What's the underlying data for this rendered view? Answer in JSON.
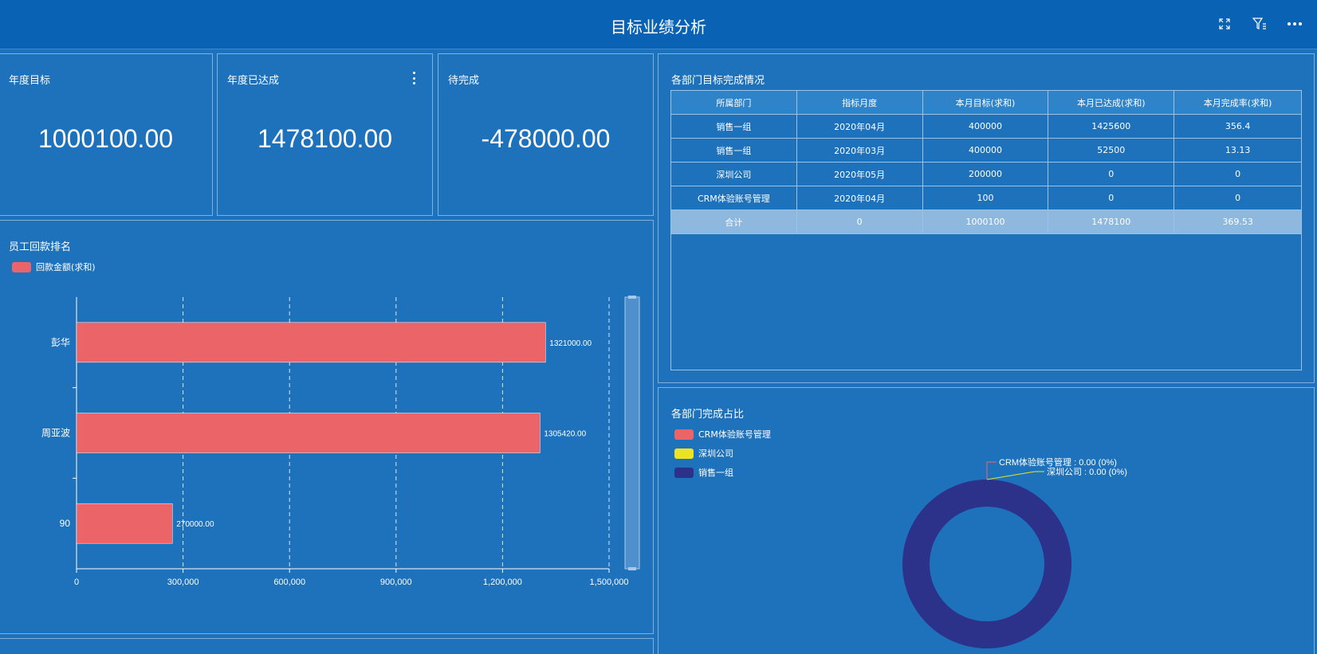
{
  "header": {
    "title": "目标业绩分析"
  },
  "icons": {
    "fullscreen": "fullscreen-icon",
    "filter": "filter-icon",
    "more": "more-horizontal-icon"
  },
  "kpis": [
    {
      "label": "年度目标",
      "value": "1000100.00"
    },
    {
      "label": "年度已达成",
      "value": "1478100.00"
    },
    {
      "label": "待完成",
      "value": "-478000.00"
    }
  ],
  "ranking": {
    "title": "员工回款排名"
  },
  "dept_table": {
    "title": "各部门目标完成情况",
    "columns": [
      "所属部门",
      "指标月度",
      "本月目标(求和)",
      "本月已达成(求和)",
      "本月完成率(求和)"
    ],
    "rows": [
      [
        "销售一组",
        "2020年04月",
        "400000",
        "1425600",
        "356.4"
      ],
      [
        "销售一组",
        "2020年03月",
        "400000",
        "52500",
        "13.13"
      ],
      [
        "深圳公司",
        "2020年05月",
        "200000",
        "0",
        "0"
      ],
      [
        "CRM体验账号管理",
        "2020年04月",
        "100",
        "0",
        "0"
      ]
    ],
    "total": [
      "合计",
      "0",
      "1000100",
      "1478100",
      "369.53"
    ]
  },
  "share": {
    "title": "各部门完成占比",
    "callouts": [
      "CRM体验账号管理 : 0.00 (0%)",
      "深圳公司 : 0.00 (0%)"
    ]
  },
  "colors": {
    "background": "#1e72bb",
    "header": "#0962b4",
    "bar": "#eb6568",
    "crm": "#eb6568",
    "shenzhen": "#ece423",
    "sales": "#2c3189"
  },
  "chart_data": [
    {
      "type": "bar",
      "orientation": "horizontal",
      "title": "员工回款排名",
      "categories": [
        "彭华",
        "周亚波",
        "90"
      ],
      "series": [
        {
          "name": "回款金额(求和)",
          "values": [
            1321000.0,
            1305420.0,
            270000.0
          ]
        }
      ],
      "data_labels": [
        "1321000.00",
        "1305420.00",
        "270000.00"
      ],
      "xlim": [
        0,
        1500000
      ],
      "x_ticks": [
        "0",
        "300,000",
        "600,000",
        "900,000",
        "1,200,000",
        "1,500,000"
      ],
      "grid": "vertical-dashed",
      "legend": "top-left"
    },
    {
      "type": "pie",
      "variant": "donut",
      "title": "各部门完成占比",
      "categories": [
        "CRM体验账号管理",
        "深圳公司",
        "销售一组"
      ],
      "values": [
        0,
        0,
        1478100
      ],
      "legend": "top-left"
    }
  ]
}
